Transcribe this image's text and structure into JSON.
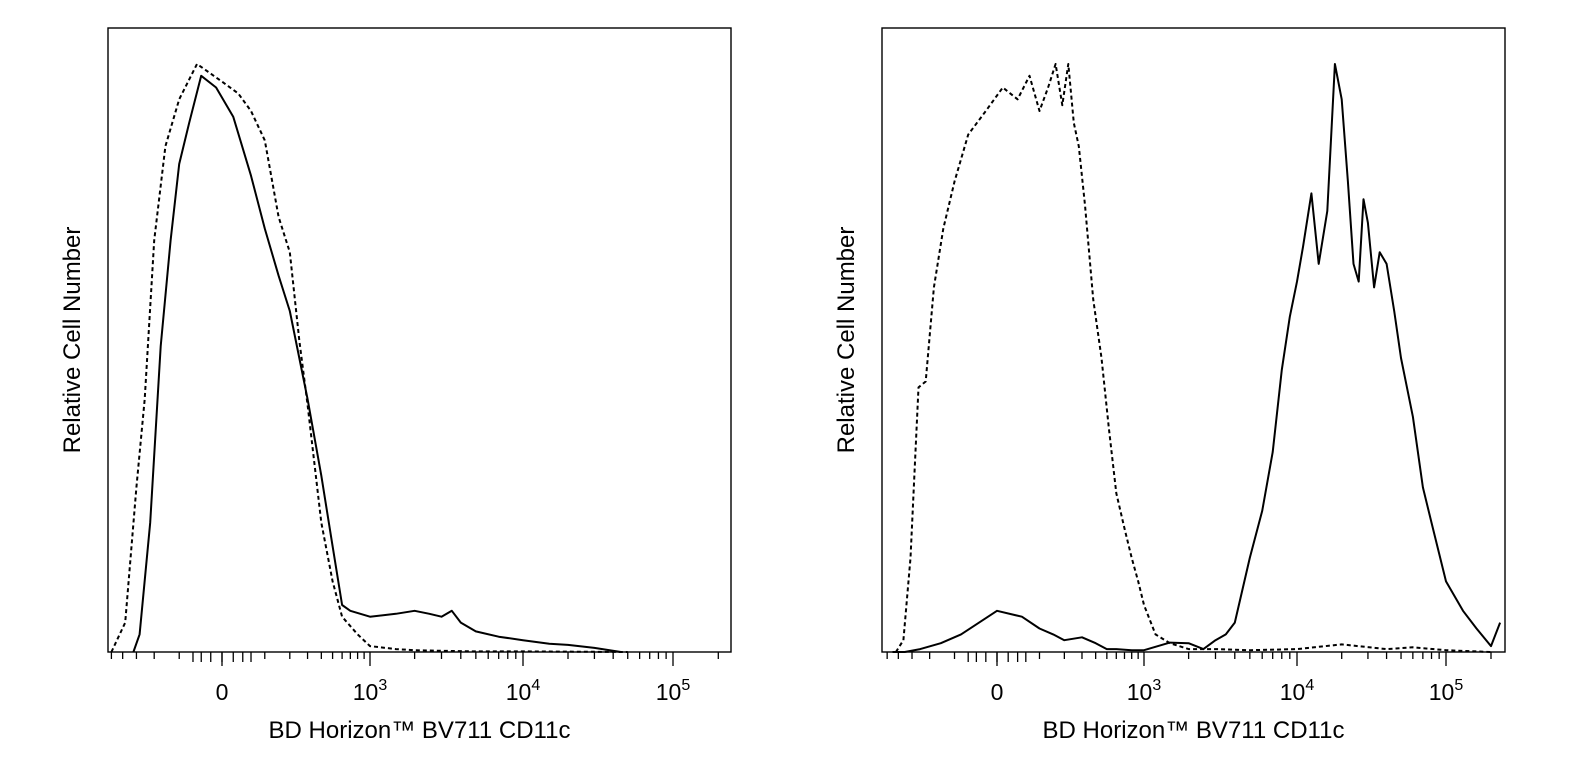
{
  "chart_data": [
    {
      "type": "line",
      "xlabel": "BD Horizon™ BV711 CD11c",
      "ylabel": "Relative Cell Number",
      "x_scale": "biexponential",
      "xlim": [
        -600,
        250000
      ],
      "ylim": [
        0,
        100
      ],
      "tick_labels": [
        {
          "value": 0,
          "base": "0",
          "exp": ""
        },
        {
          "value": 1000,
          "base": "10",
          "exp": "3"
        },
        {
          "value": 10000,
          "base": "10",
          "exp": "4"
        },
        {
          "value": 100000,
          "base": "10",
          "exp": "5"
        }
      ],
      "series": [
        {
          "style": "dashed",
          "x": [
            -500,
            -380,
            -300,
            -250,
            -200,
            -150,
            -100,
            -50,
            0,
            30,
            60,
            100,
            150,
            200,
            250,
            300,
            400,
            500,
            600,
            800,
            1000,
            1500,
            2000,
            3000,
            5000,
            10000,
            50000
          ],
          "y": [
            0,
            5,
            28,
            43,
            70,
            86,
            94,
            100,
            97,
            95,
            92,
            87,
            74,
            68,
            53,
            42,
            22,
            12,
            6,
            3,
            1,
            0.5,
            0.3,
            0.2,
            0.1,
            0.1,
            0
          ]
        },
        {
          "style": "solid",
          "x": [
            -320,
            -280,
            -220,
            -170,
            -130,
            -100,
            -70,
            -40,
            -10,
            20,
            60,
            100,
            150,
            200,
            250,
            300,
            400,
            500,
            600,
            700,
            1000,
            1500,
            2000,
            2500,
            3000,
            3500,
            4000,
            5000,
            7000,
            10000,
            15000,
            20000,
            30000,
            45000
          ],
          "y": [
            0,
            3,
            22,
            52,
            70,
            83,
            90,
            98,
            96,
            91,
            81,
            72,
            64,
            58,
            50,
            43,
            30,
            18,
            8,
            7,
            6,
            6.5,
            7,
            6.5,
            6,
            7,
            5,
            3.5,
            2.6,
            2,
            1.4,
            1.2,
            0.7,
            0
          ]
        }
      ]
    },
    {
      "type": "line",
      "xlabel": "BD Horizon™ BV711 CD11c",
      "ylabel": "Relative Cell Number",
      "x_scale": "biexponential",
      "xlim": [
        -600,
        250000
      ],
      "ylim": [
        0,
        100
      ],
      "tick_labels": [
        {
          "value": 0,
          "base": "0",
          "exp": ""
        },
        {
          "value": 1000,
          "base": "10",
          "exp": "3"
        },
        {
          "value": 10000,
          "base": "10",
          "exp": "4"
        },
        {
          "value": 100000,
          "base": "10",
          "exp": "5"
        }
      ],
      "series": [
        {
          "style": "dashed",
          "x": [
            -420,
            -360,
            -310,
            -260,
            -220,
            -180,
            -140,
            -100,
            -60,
            -20,
            10,
            40,
            70,
            100,
            130,
            160,
            190,
            220,
            250,
            280,
            320,
            380,
            450,
            520,
            600,
            700,
            800,
            900,
            1000,
            1200,
            1500,
            2000,
            3000,
            5000,
            10000,
            20000,
            40000,
            60000,
            100000,
            200000
          ],
          "y": [
            0,
            2,
            16,
            45,
            46,
            62,
            72,
            80,
            88,
            92,
            96,
            94,
            98,
            92,
            96,
            100,
            93,
            100,
            90,
            86,
            76,
            60,
            50,
            38,
            27,
            21,
            16,
            12,
            8,
            3,
            1.5,
            0.5,
            0.5,
            0.3,
            0.5,
            1.3,
            0.5,
            0.8,
            0.3,
            0
          ]
        },
        {
          "style": "solid",
          "x": [
            -450,
            -350,
            -250,
            -150,
            -80,
            0,
            50,
            100,
            150,
            200,
            300,
            400,
            500,
            600,
            800,
            1000,
            1500,
            2000,
            2500,
            3000,
            3500,
            4000,
            5000,
            6000,
            7000,
            8000,
            9000,
            10000,
            11000,
            12500,
            14000,
            16000,
            18000,
            20000,
            22000,
            24000,
            26000,
            28000,
            30000,
            33000,
            36000,
            40000,
            45000,
            50000,
            60000,
            70000,
            80000,
            100000,
            130000,
            160000,
            200000,
            230000
          ],
          "y": [
            0,
            0,
            0.5,
            1.5,
            3,
            7,
            6,
            4,
            3,
            2,
            2.5,
            1.5,
            0.5,
            0.5,
            0.3,
            0.3,
            1.6,
            1.5,
            0.5,
            2,
            3,
            5,
            16,
            24,
            34,
            48,
            57,
            63,
            69,
            78,
            66,
            75,
            100,
            94,
            80,
            66,
            63,
            77,
            73,
            62,
            68,
            66,
            58,
            50,
            40,
            28,
            22,
            12,
            7,
            4,
            1,
            5
          ]
        }
      ]
    }
  ]
}
